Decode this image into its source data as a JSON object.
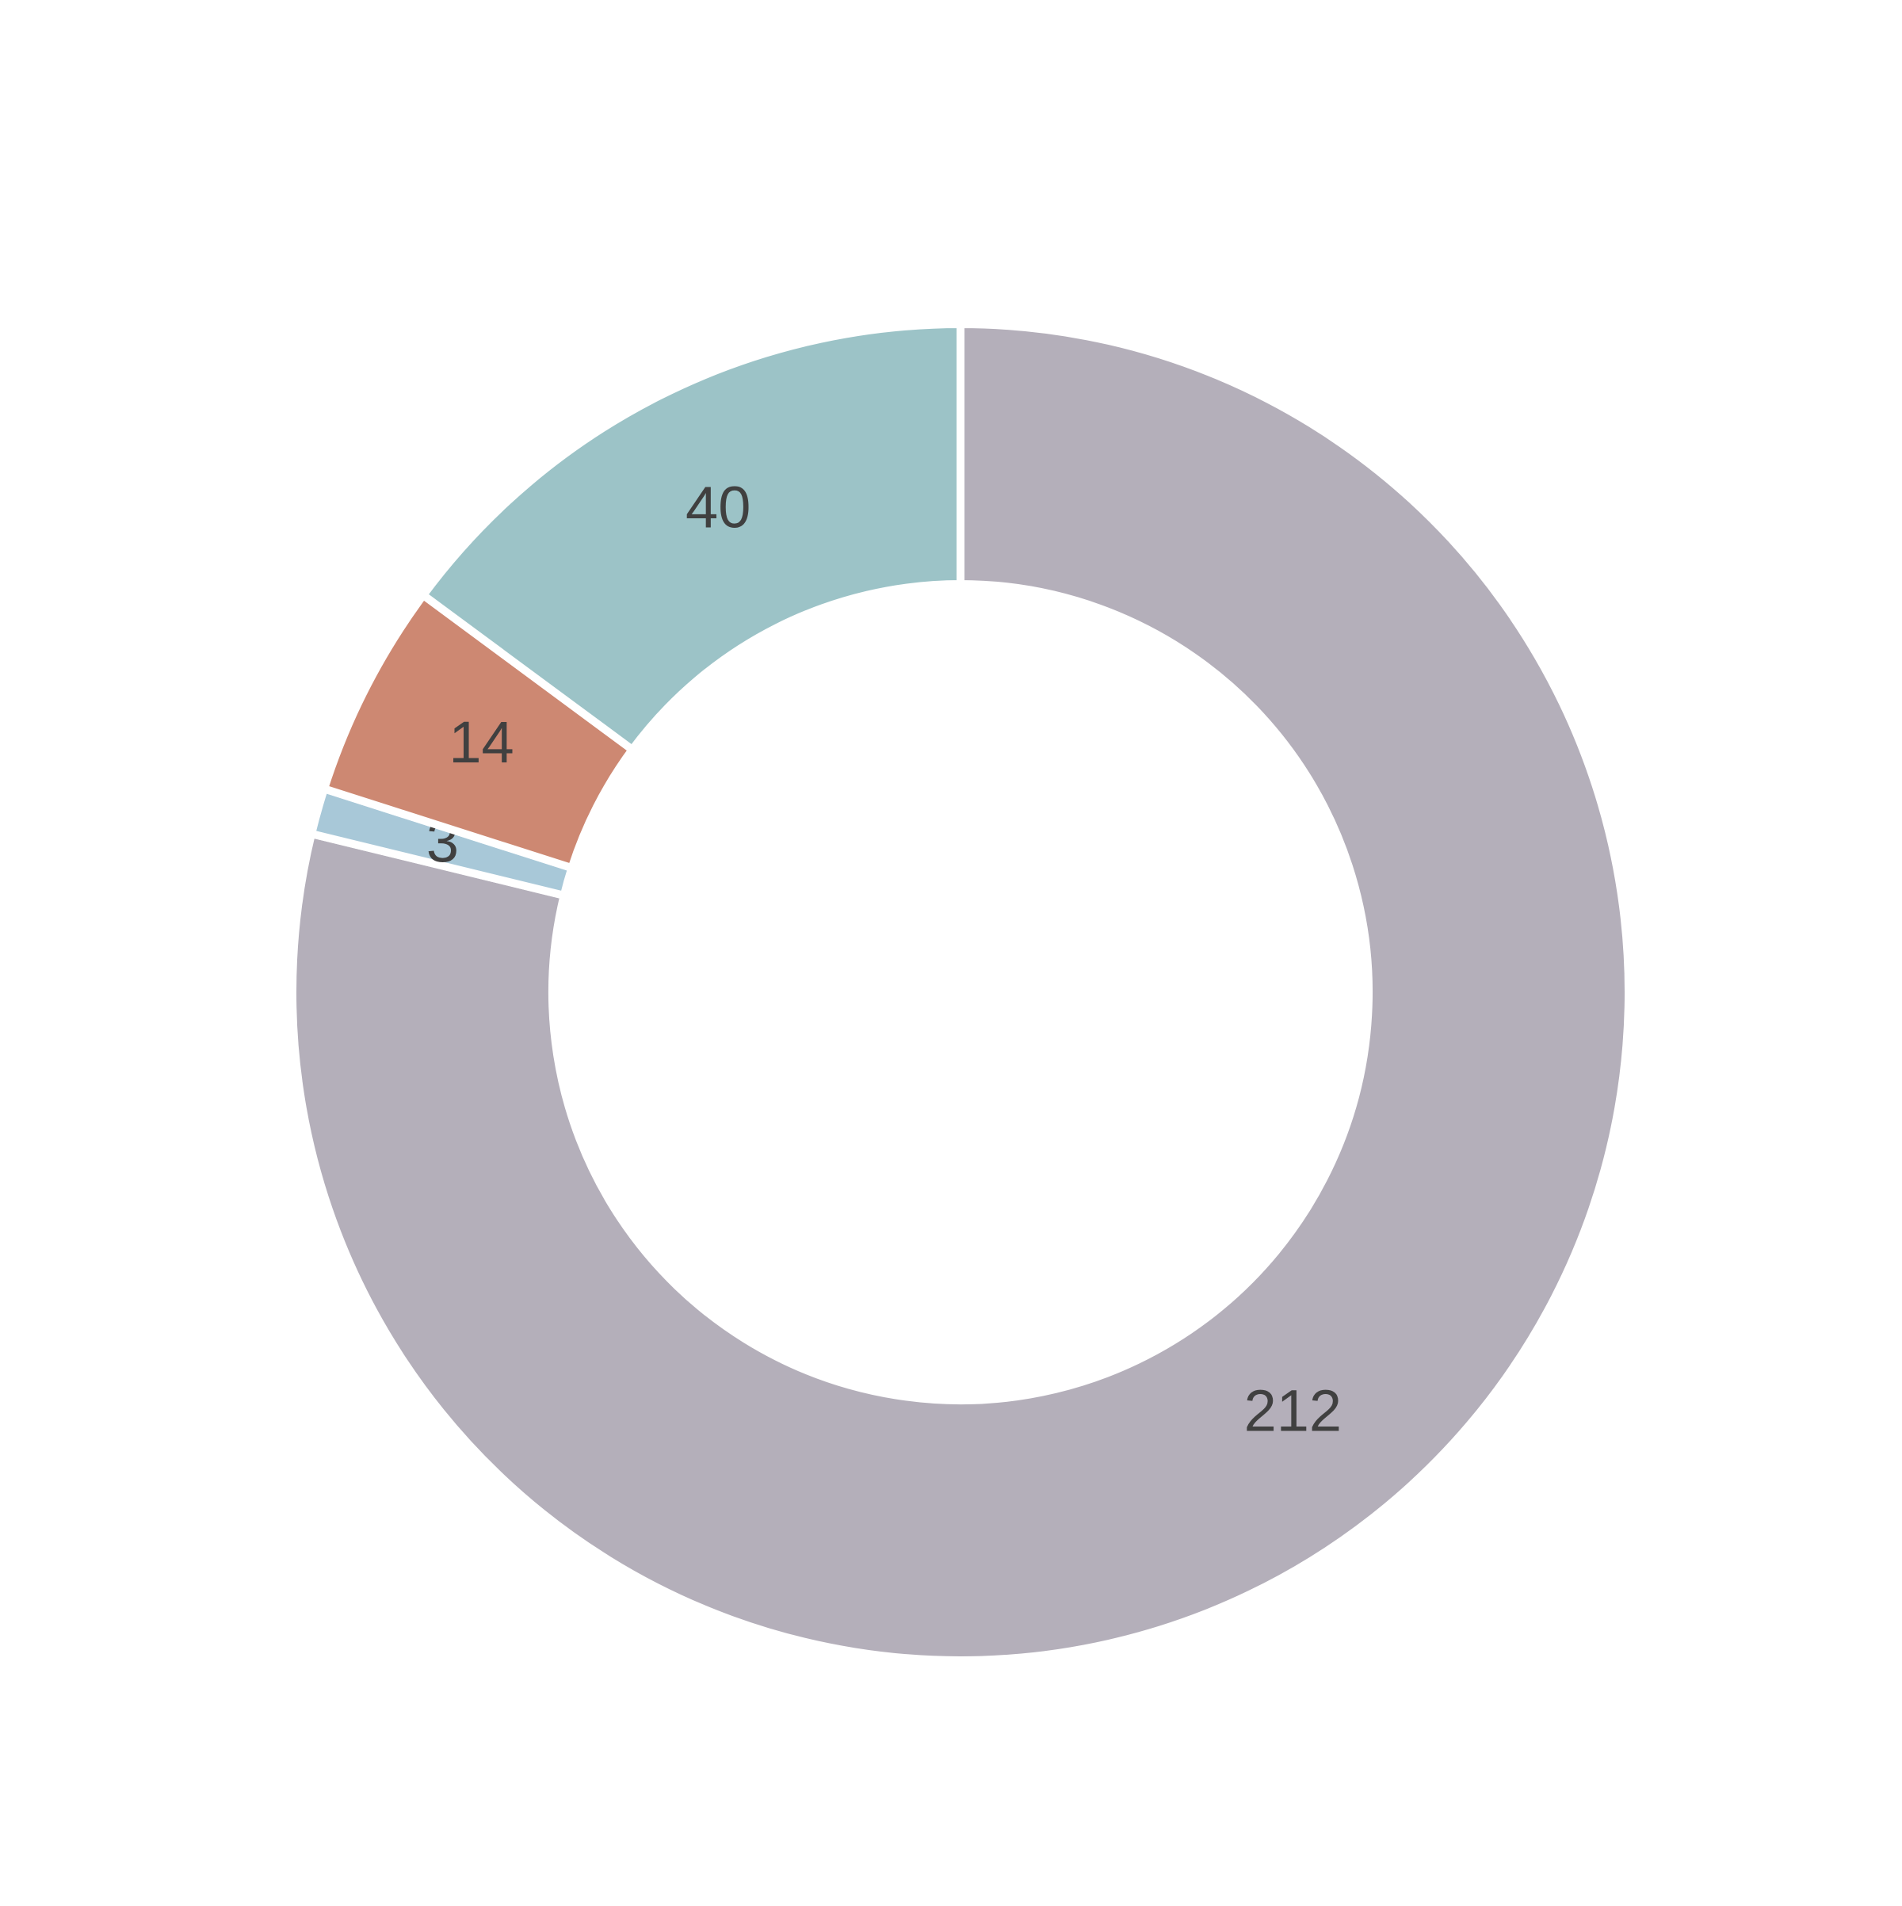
{
  "chart_data": {
    "type": "donut",
    "values": [
      212,
      3,
      14,
      40
    ],
    "colors": [
      "#b4afba",
      "#a8c8d8",
      "#cd8872",
      "#9cc3c7"
    ]
  }
}
